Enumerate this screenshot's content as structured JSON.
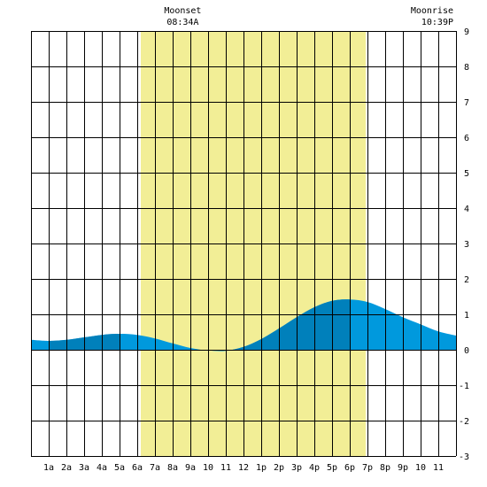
{
  "chart_data": {
    "type": "area",
    "title": "",
    "xlabel": "",
    "ylabel": "",
    "xlim": [
      0,
      24
    ],
    "ylim": [
      -3,
      9
    ],
    "x_tick_labels": [
      "1a",
      "2a",
      "3a",
      "4a",
      "5a",
      "6a",
      "7a",
      "8a",
      "9a",
      "10",
      "11",
      "12",
      "1p",
      "2p",
      "3p",
      "4p",
      "5p",
      "6p",
      "7p",
      "8p",
      "9p",
      "10",
      "11"
    ],
    "y_tick_labels": [
      "9",
      "8",
      "7",
      "6",
      "5",
      "4",
      "3",
      "2",
      "1",
      "0",
      "-1",
      "-2",
      "-3"
    ],
    "daylight": {
      "start_hour": 6.2,
      "end_hour": 18.9
    },
    "annotations": [
      {
        "label": "Moonset",
        "time": "08:34A",
        "hour": 8.57
      },
      {
        "label": "Moonrise",
        "time": "10:39P",
        "hour": 22.65
      }
    ],
    "series": [
      {
        "x": [
          0,
          1,
          2,
          3,
          4,
          5,
          6,
          7,
          8,
          9,
          10,
          11,
          12,
          13,
          14,
          15,
          16,
          17,
          18,
          19,
          20,
          21,
          22,
          23,
          24
        ],
        "y": [
          0.28,
          0.25,
          0.28,
          0.35,
          0.42,
          0.45,
          0.42,
          0.32,
          0.18,
          0.05,
          -0.02,
          -0.03,
          0.08,
          0.3,
          0.6,
          0.92,
          1.2,
          1.38,
          1.42,
          1.35,
          1.15,
          0.92,
          0.72,
          0.52,
          0.4
        ]
      }
    ],
    "grid": true,
    "colors": {
      "daylight": "#f2ee96",
      "tide_light": "#0099dd",
      "tide_dark": "#0080bb",
      "grid": "#000000"
    }
  }
}
